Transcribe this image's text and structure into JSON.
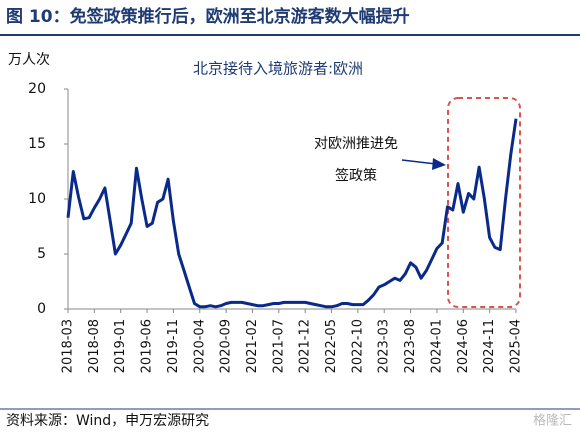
{
  "chart_data": {
    "type": "line",
    "title": "图 10：免签政策推行后，欧洲至北京游客数大幅提升",
    "subtitle": "北京接待入境旅游者:欧洲",
    "y_label": "万人次",
    "annotation": [
      "对欧洲推进免",
      "签政策"
    ],
    "source": "资料来源：Wind，申万宏源研究",
    "watermark": "格隆汇",
    "categories": [
      "2018-03",
      null,
      null,
      null,
      null,
      "2018-08",
      null,
      null,
      null,
      null,
      "2019-01",
      null,
      null,
      null,
      null,
      "2019-06",
      null,
      null,
      null,
      null,
      "2019-11",
      null,
      null,
      null,
      null,
      "2020-04",
      null,
      null,
      null,
      null,
      "2020-09",
      null,
      null,
      null,
      null,
      "2021-02",
      null,
      null,
      null,
      null,
      "2021-07",
      null,
      null,
      null,
      null,
      "2021-12",
      null,
      null,
      null,
      null,
      "2022-05",
      null,
      null,
      null,
      null,
      "2022-10",
      null,
      null,
      null,
      null,
      "2023-03",
      null,
      null,
      null,
      null,
      "2023-08",
      null,
      null,
      null,
      null,
      "2024-01",
      null,
      null,
      null,
      null,
      "2024-06",
      null,
      null,
      null,
      null,
      "2024-11",
      null,
      null,
      null,
      null,
      "2025-04"
    ],
    "series": [
      {
        "name": "北京接待入境旅游者:欧洲",
        "color": "#0a2a8a",
        "values": [
          8.3,
          12.5,
          10.2,
          8.2,
          8.3,
          9.2,
          10,
          11,
          8,
          5,
          5.8,
          6.8,
          7.8,
          12.8,
          10,
          7.5,
          7.8,
          9.7,
          10,
          11.8,
          8,
          5,
          3.5,
          2,
          0.5,
          0.2,
          0.2,
          0.3,
          0.2,
          0.3,
          0.5,
          0.6,
          0.6,
          0.6,
          0.5,
          0.4,
          0.3,
          0.3,
          0.4,
          0.5,
          0.5,
          0.6,
          0.6,
          0.6,
          0.6,
          0.6,
          0.5,
          0.4,
          0.3,
          0.2,
          0.2,
          0.3,
          0.5,
          0.5,
          0.4,
          0.4,
          0.4,
          0.8,
          1.3,
          2,
          2.2,
          2.5,
          2.8,
          2.6,
          3.2,
          4.2,
          3.8,
          2.8,
          3.5,
          4.5,
          5.5,
          6,
          9.3,
          9,
          11.4,
          8.8,
          10.5,
          10,
          12.9,
          10,
          6.5,
          5.6,
          5.4,
          10,
          14,
          17.3
        ]
      }
    ],
    "ylim": [
      0,
      20
    ],
    "yticks": [
      0,
      5,
      10,
      15,
      20
    ]
  }
}
